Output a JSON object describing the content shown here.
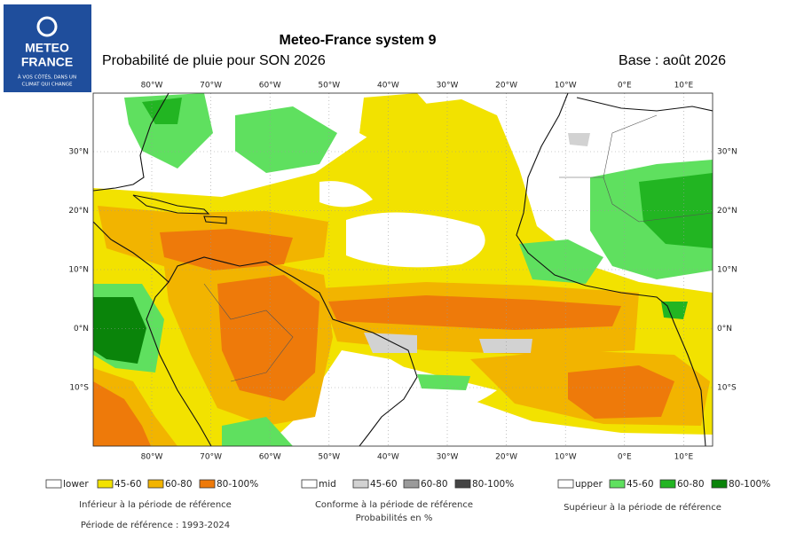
{
  "logo": {
    "line1": "METEO",
    "line2": "FRANCE",
    "tagline1": "À VOS CÔTÉS, DANS UN",
    "tagline2": "CLIMAT QUI CHANGE"
  },
  "header": {
    "title": "Meteo-France system 9",
    "subtitle": "Probabilité de pluie pour SON 2026",
    "base": "Base : août 2026"
  },
  "map": {
    "lon_labels": [
      "80°W",
      "70°W",
      "60°W",
      "50°W",
      "40°W",
      "30°W",
      "20°W",
      "10°W",
      "0°E",
      "10°E"
    ],
    "lat_labels": [
      "30°N",
      "20°N",
      "10°N",
      "0°N",
      "10°S"
    ]
  },
  "legend": [
    {
      "name": "lower",
      "color": "#ffffff",
      "items": [
        {
          "label": "45-60",
          "color": "#f2e200"
        },
        {
          "label": "60-80",
          "color": "#f2b400"
        },
        {
          "label": "80-100%",
          "color": "#ee7a0a"
        }
      ],
      "notes": [
        "Inférieur à la période de référence",
        "Période de référence : 1993-2024"
      ]
    },
    {
      "name": "mid",
      "color": "#ffffff",
      "items": [
        {
          "label": "45-60",
          "color": "#d2d2d2"
        },
        {
          "label": "60-80",
          "color": "#9a9a9a"
        },
        {
          "label": "80-100%",
          "color": "#444444"
        }
      ],
      "notes": [
        "Conforme à la période de référence",
        "Probabilités en %"
      ]
    },
    {
      "name": "upper",
      "color": "#ffffff",
      "items": [
        {
          "label": "45-60",
          "color": "#5fe05f"
        },
        {
          "label": "60-80",
          "color": "#22b522"
        },
        {
          "label": "80-100%",
          "color": "#0a840a"
        }
      ],
      "notes": [
        "Supérieur à la période de référence"
      ]
    }
  ]
}
